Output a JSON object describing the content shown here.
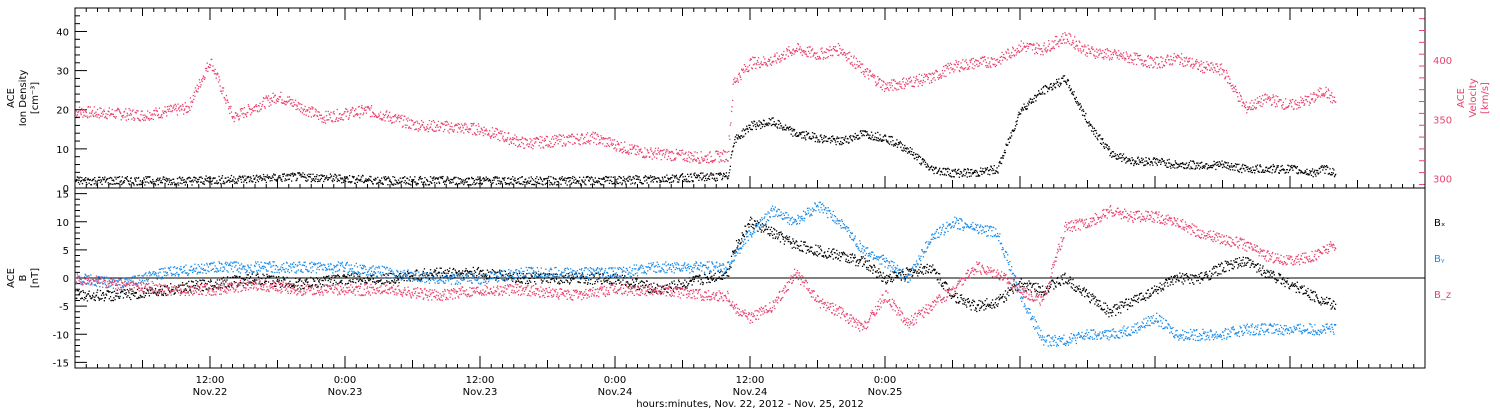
{
  "chart_data": [
    {
      "type": "scatter",
      "panel": "top",
      "left_axis_label": [
        "ACE",
        "Ion Density",
        "[cm⁻³]"
      ],
      "right_axis_label": [
        "ACE",
        "Velocity",
        "[km/s]"
      ],
      "left_ylim": [
        0,
        46
      ],
      "left_ticks": [
        "0",
        "10",
        "20",
        "30",
        "40"
      ],
      "right_ylim": [
        292,
        444
      ],
      "right_ticks": [
        "300",
        "350",
        "400"
      ],
      "series": [
        {
          "name": "",
          "axis": "left",
          "color": "#000000",
          "x_hours": [
            0,
            6,
            10,
            16,
            20,
            28,
            34,
            40,
            44,
            48,
            52,
            56,
            58,
            58.5,
            60,
            62,
            64,
            66,
            68,
            70,
            72,
            74,
            76,
            78,
            80,
            82,
            84,
            86,
            88,
            90,
            92,
            94,
            96,
            98,
            100,
            102,
            104,
            106,
            108,
            110,
            111,
            112
          ],
          "values": [
            2,
            2,
            2,
            2.5,
            3,
            2,
            2,
            2,
            2,
            2,
            2.5,
            3,
            3,
            12,
            16,
            17,
            14,
            13,
            12,
            14,
            13,
            10,
            5,
            4,
            4,
            5,
            20,
            25,
            28,
            17,
            9,
            7,
            7,
            6,
            6,
            6,
            5,
            5,
            5,
            4,
            5,
            4
          ]
        },
        {
          "name": "",
          "axis": "right",
          "color": "#e8436e",
          "x_hours": [
            0,
            6,
            10,
            12,
            14,
            18,
            22,
            26,
            30,
            36,
            40,
            46,
            50,
            56,
            58,
            58.5,
            60,
            62,
            64,
            66,
            68,
            70,
            72,
            74,
            76,
            78,
            80,
            82,
            84,
            86,
            88,
            90,
            92,
            94,
            96,
            98,
            100,
            102,
            104,
            106,
            108,
            110,
            111,
            112
          ],
          "values": [
            357,
            354,
            360,
            400,
            352,
            370,
            352,
            358,
            346,
            342,
            330,
            335,
            323,
            318,
            320,
            382,
            398,
            400,
            410,
            405,
            410,
            392,
            378,
            382,
            385,
            395,
            398,
            400,
            412,
            410,
            420,
            408,
            405,
            402,
            398,
            402,
            395,
            392,
            360,
            368,
            362,
            368,
            375,
            365
          ]
        }
      ]
    },
    {
      "type": "scatter",
      "panel": "bottom",
      "left_axis_label": [
        "ACE",
        "B",
        "[nT]"
      ],
      "ylim": [
        -16,
        16
      ],
      "y_ticks": [
        "-15",
        "-10",
        "-5",
        "0",
        "5",
        "10",
        "15"
      ],
      "zero_line": true,
      "series": [
        {
          "name": "Bₓ",
          "color": "#000000",
          "x_hours": [
            0,
            4,
            8,
            12,
            16,
            20,
            24,
            28,
            32,
            36,
            40,
            44,
            48,
            52,
            56,
            58,
            58.5,
            60,
            62,
            64,
            66,
            68,
            70,
            72,
            74,
            76,
            78,
            80,
            82,
            84,
            86,
            88,
            90,
            92,
            94,
            96,
            98,
            100,
            102,
            104,
            106,
            108,
            110,
            112
          ],
          "values": [
            -3,
            -3,
            -2,
            -1,
            0,
            -1,
            0,
            0,
            1,
            1,
            0,
            0,
            0,
            -2,
            0,
            1,
            5,
            10,
            8,
            6,
            5,
            4,
            3,
            0,
            1,
            2,
            -3,
            -5,
            -4,
            -1,
            -2,
            0,
            -3,
            -6,
            -4,
            -2,
            0,
            0,
            2,
            3,
            1,
            -1,
            -3,
            -5
          ]
        },
        {
          "name": "Bᵧ",
          "color": "#1a8be8",
          "x_hours": [
            0,
            4,
            8,
            12,
            16,
            20,
            24,
            28,
            32,
            36,
            40,
            44,
            48,
            52,
            56,
            58,
            58.5,
            60,
            62,
            64,
            66,
            68,
            70,
            72,
            74,
            76,
            78,
            80,
            82,
            84,
            86,
            88,
            90,
            92,
            94,
            96,
            98,
            100,
            102,
            104,
            106,
            108,
            110,
            112
          ],
          "values": [
            0,
            -1,
            1,
            2,
            2,
            2,
            2,
            1,
            0,
            0,
            1,
            1,
            1,
            2,
            2,
            2,
            4,
            8,
            12,
            10,
            13,
            10,
            5,
            3,
            0,
            7,
            10,
            9,
            8,
            -3,
            -11,
            -11,
            -10,
            -10,
            -9,
            -7,
            -10,
            -10,
            -10,
            -9,
            -9,
            -9,
            -9,
            -9
          ]
        },
        {
          "name": "B_z",
          "color": "#e8436e",
          "x_hours": [
            0,
            4,
            8,
            12,
            16,
            20,
            24,
            28,
            32,
            36,
            40,
            44,
            48,
            52,
            56,
            58,
            58.5,
            60,
            62,
            64,
            66,
            68,
            70,
            72,
            74,
            76,
            78,
            80,
            82,
            84,
            86,
            88,
            90,
            92,
            94,
            96,
            98,
            100,
            102,
            104,
            106,
            108,
            110,
            112
          ],
          "values": [
            0,
            -1,
            -2,
            -2,
            -1,
            -2,
            -2,
            -2,
            -3,
            -2,
            -2,
            -3,
            -2,
            -2,
            -3,
            -3,
            -5,
            -7,
            -5,
            1,
            -4,
            -6,
            -9,
            -3,
            -8,
            -5,
            -2,
            2,
            1,
            -2,
            -4,
            9,
            10,
            12,
            11,
            11,
            10,
            8,
            7,
            6,
            4,
            3,
            4,
            6
          ]
        }
      ]
    }
  ],
  "x_axis": {
    "range_hours": [
      0,
      120
    ],
    "major_ticks": [
      {
        "hour": 12,
        "time": "12:00",
        "date": "Nov.22"
      },
      {
        "hour": 24,
        "time": "0:00",
        "date": "Nov.23"
      },
      {
        "hour": 36,
        "time": "12:00",
        "date": "Nov.23"
      },
      {
        "hour": 48,
        "time": "0:00",
        "date": "Nov.24"
      },
      {
        "hour": 60,
        "time": "12:00",
        "date": "Nov.24"
      },
      {
        "hour": 72,
        "time": "0:00",
        "date": "Nov.25"
      }
    ],
    "label": "hours:minutes, Nov. 22, 2012 - Nov. 25, 2012"
  },
  "legend": [
    "Bₓ",
    "Bᵧ",
    "B_z"
  ],
  "colors": {
    "density": "#000000",
    "velocity": "#e8436e",
    "bx": "#000000",
    "by": "#1a8be8",
    "bz": "#e8436e"
  }
}
